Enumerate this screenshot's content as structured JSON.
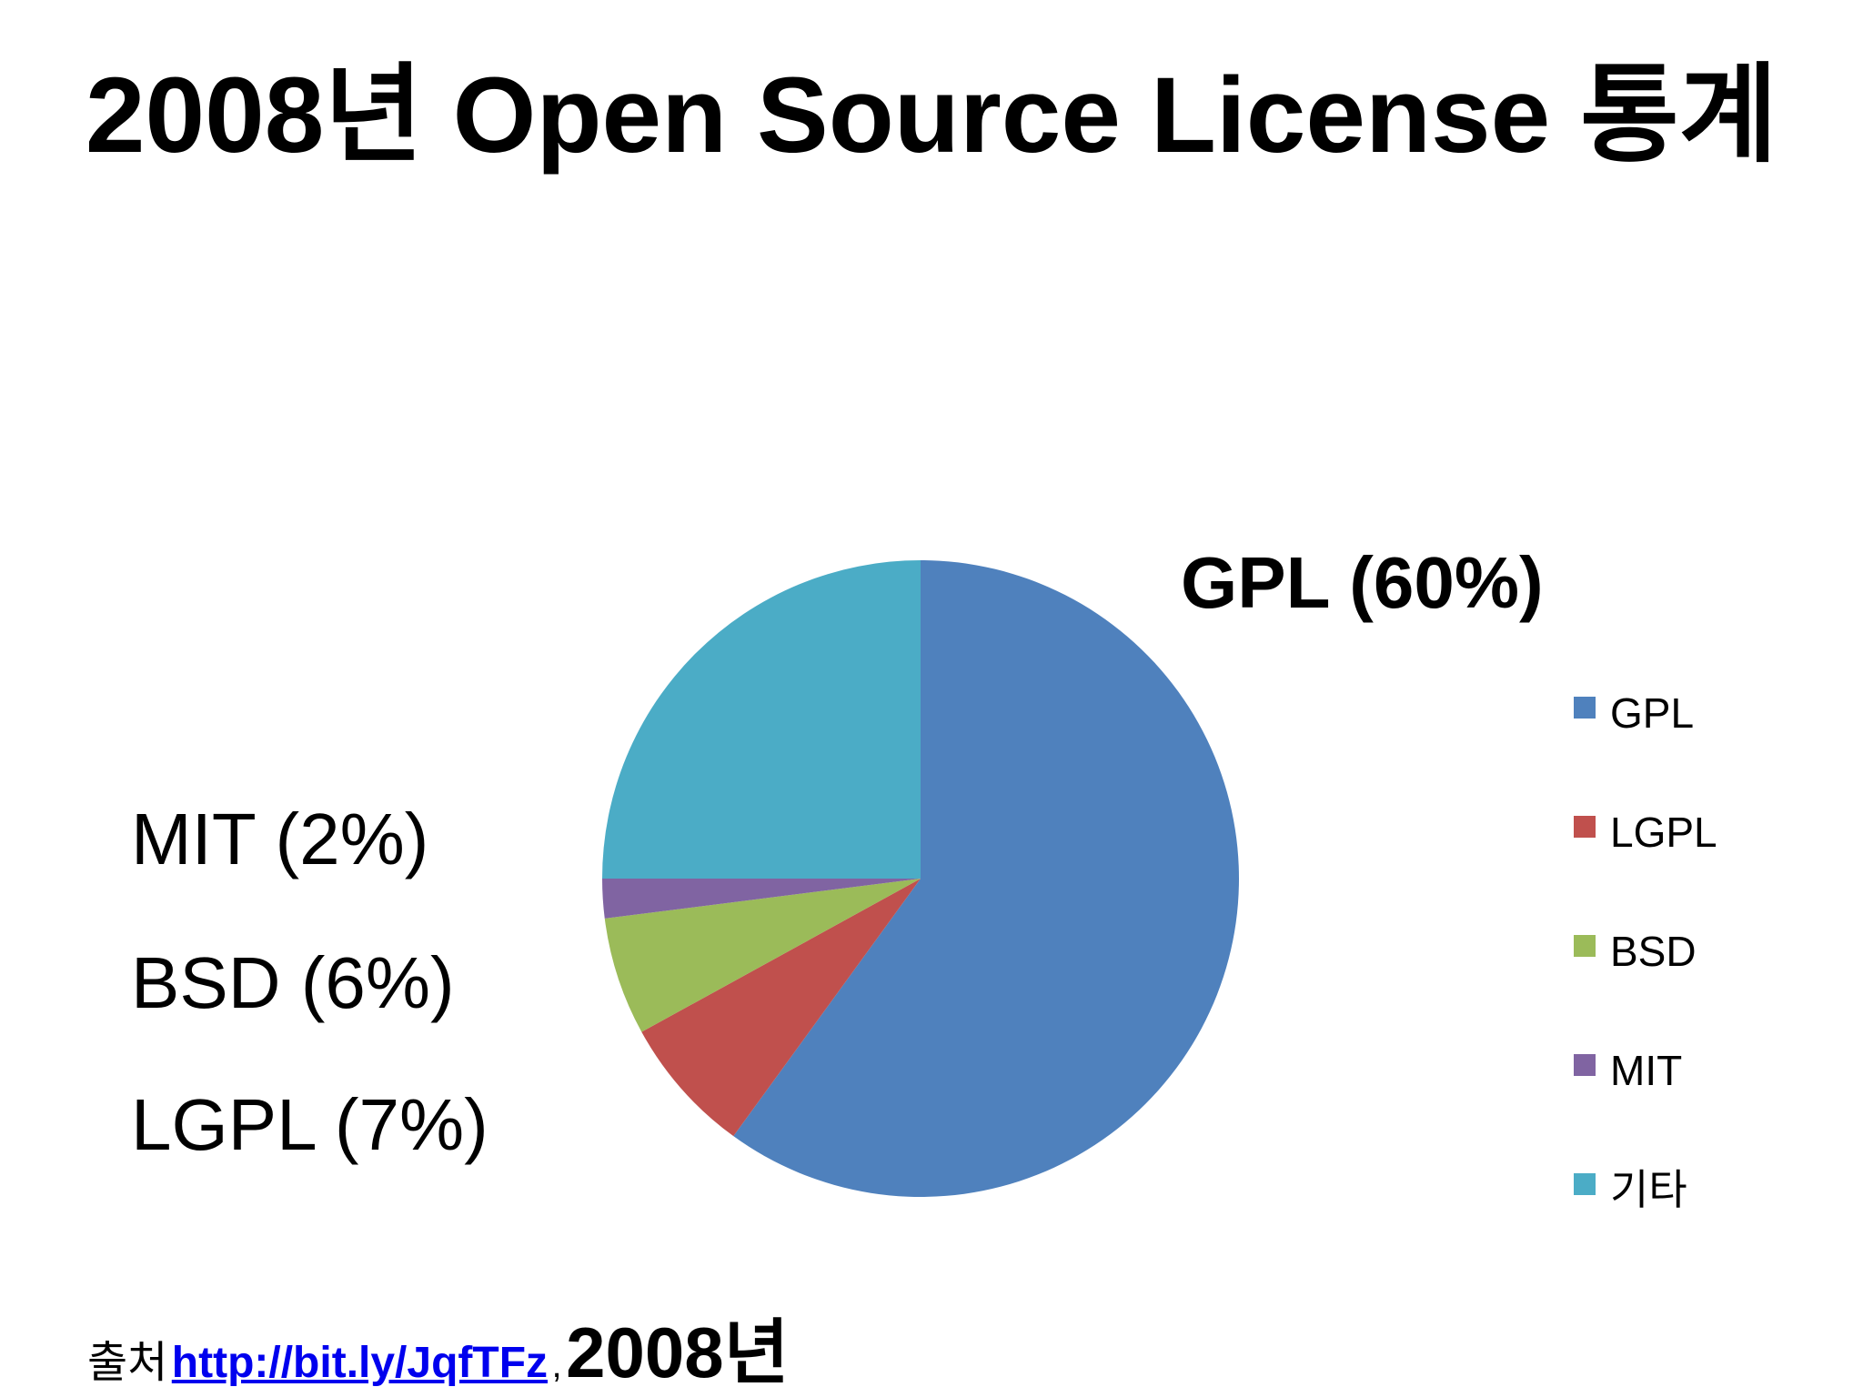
{
  "slide": {
    "title": "2008년 Open Source License 통계"
  },
  "chart_data": {
    "type": "pie",
    "title": "2008년 Open Source License 통계",
    "categories": [
      "GPL",
      "LGPL",
      "BSD",
      "MIT",
      "기타"
    ],
    "values": [
      60,
      7,
      6,
      2,
      25
    ],
    "colors": [
      "#4F81BD",
      "#C0504D",
      "#9BBB59",
      "#8064A2",
      "#4BACC6"
    ],
    "unit": "%",
    "start_angle": "12 o'clock, clockwise",
    "legend_placement": "right",
    "data_labels": {
      "gpl": "GPL (60%)",
      "mit": "MIT (2%)",
      "bsd": "BSD (6%)",
      "lgpl": "LGPL (7%)"
    }
  },
  "footer": {
    "source_prefix": "출처",
    "source_link": "http://bit.ly/JqfTFz",
    "separator": ",",
    "year": "2008년"
  }
}
